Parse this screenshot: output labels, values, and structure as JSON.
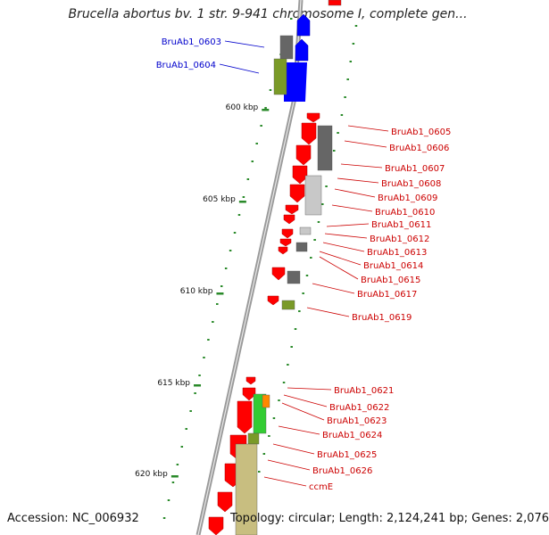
{
  "title": "Brucella abortus bv. 1 str. 9-941 chromosome I, complete gen...",
  "footer": {
    "accession": "Accession: NC_006932",
    "summary": "Topology: circular; Length: 2,124,241 bp; Genes: 2,076"
  },
  "colors": {
    "backbone": "#9a9a9a",
    "forward_gene": "#0000ff",
    "reverse_gene": "#ff0000",
    "feature_dark_gray": "#666666",
    "feature_light_gray": "#c8c8c8",
    "feature_olive": "#7a9a28",
    "feature_khaki": "#c8be80",
    "feature_green": "#33cc33",
    "feature_orange": "#ff8800",
    "tick": "#2a8a2a",
    "label_blue": "#0000cc",
    "label_red": "#cc0000"
  },
  "scale_labels": [
    "600 kbp",
    "605 kbp",
    "610 kbp",
    "615 kbp",
    "620 kbp"
  ],
  "gene_labels_left": [
    "BruAb1_0603",
    "BruAb1_0604"
  ],
  "gene_labels_right": [
    "BruAb1_0605",
    "BruAb1_0606",
    "BruAb1_0607",
    "BruAb1_0608",
    "BruAb1_0609",
    "BruAb1_0610",
    "BruAb1_0611",
    "BruAb1_0612",
    "BruAb1_0613",
    "BruAb1_0614",
    "BruAb1_0615",
    "BruAb1_0617",
    "BruAb1_0619",
    "BruAb1_0621",
    "BruAb1_0622",
    "BruAb1_0623",
    "BruAb1_0624",
    "BruAb1_0625",
    "BruAb1_0626",
    "ccmE"
  ]
}
